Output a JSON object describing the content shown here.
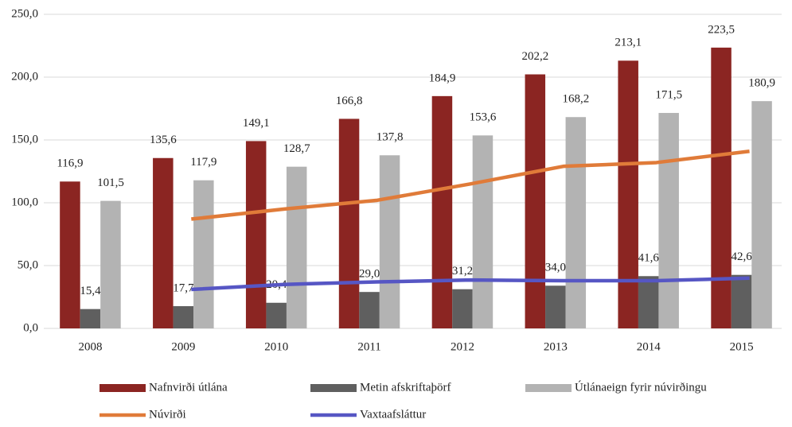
{
  "chart_data": {
    "type": "bar",
    "categories": [
      "2008",
      "2009",
      "2010",
      "2011",
      "2012",
      "2013",
      "2014",
      "2015"
    ],
    "series": [
      {
        "name": "Nafnvirði útlána",
        "type": "bar",
        "color": "#8b2522",
        "values": [
          116.9,
          135.6,
          149.1,
          166.8,
          184.9,
          202.2,
          213.1,
          223.5
        ],
        "value_labels": [
          "116,9",
          "135,6",
          "149,1",
          "166,8",
          "184,9",
          "202,2",
          "213,1",
          "223,5"
        ]
      },
      {
        "name": "Metin afskriftaþörf",
        "type": "bar",
        "color": "#5f5f5f",
        "values": [
          15.4,
          17.7,
          20.4,
          29.0,
          31.2,
          34.0,
          41.6,
          42.6
        ],
        "value_labels": [
          "15,4",
          "17,7",
          "20,4",
          "29,0",
          "31,2",
          "34,0",
          "41,6",
          "42,6"
        ]
      },
      {
        "name": "Útlánaeign fyrir núvirðingu",
        "type": "bar",
        "color": "#b3b3b3",
        "values": [
          101.5,
          117.9,
          128.7,
          137.8,
          153.6,
          168.2,
          171.5,
          180.9
        ],
        "value_labels": [
          "101,5",
          "117,9",
          "128,7",
          "137,8",
          "153,6",
          "168,2",
          "171,5",
          "180,9"
        ]
      },
      {
        "name": "Núvirði",
        "type": "line",
        "color": "#e07b39",
        "values": [
          null,
          87,
          95,
          102,
          115,
          129,
          132,
          141
        ]
      },
      {
        "name": "Vaxtaafsláttur",
        "type": "line",
        "color": "#5656c4",
        "values": [
          null,
          31,
          35,
          37,
          38.5,
          38,
          38,
          40
        ]
      }
    ],
    "ylim": [
      0,
      250
    ],
    "yticks": [
      {
        "value": 0,
        "label": "0,0"
      },
      {
        "value": 50,
        "label": "50,0"
      },
      {
        "value": 100,
        "label": "100,0"
      },
      {
        "value": 150,
        "label": "150,0"
      },
      {
        "value": 200,
        "label": "200,0"
      },
      {
        "value": 250,
        "label": "250,0"
      }
    ],
    "grid": true,
    "legend": "bottom"
  }
}
